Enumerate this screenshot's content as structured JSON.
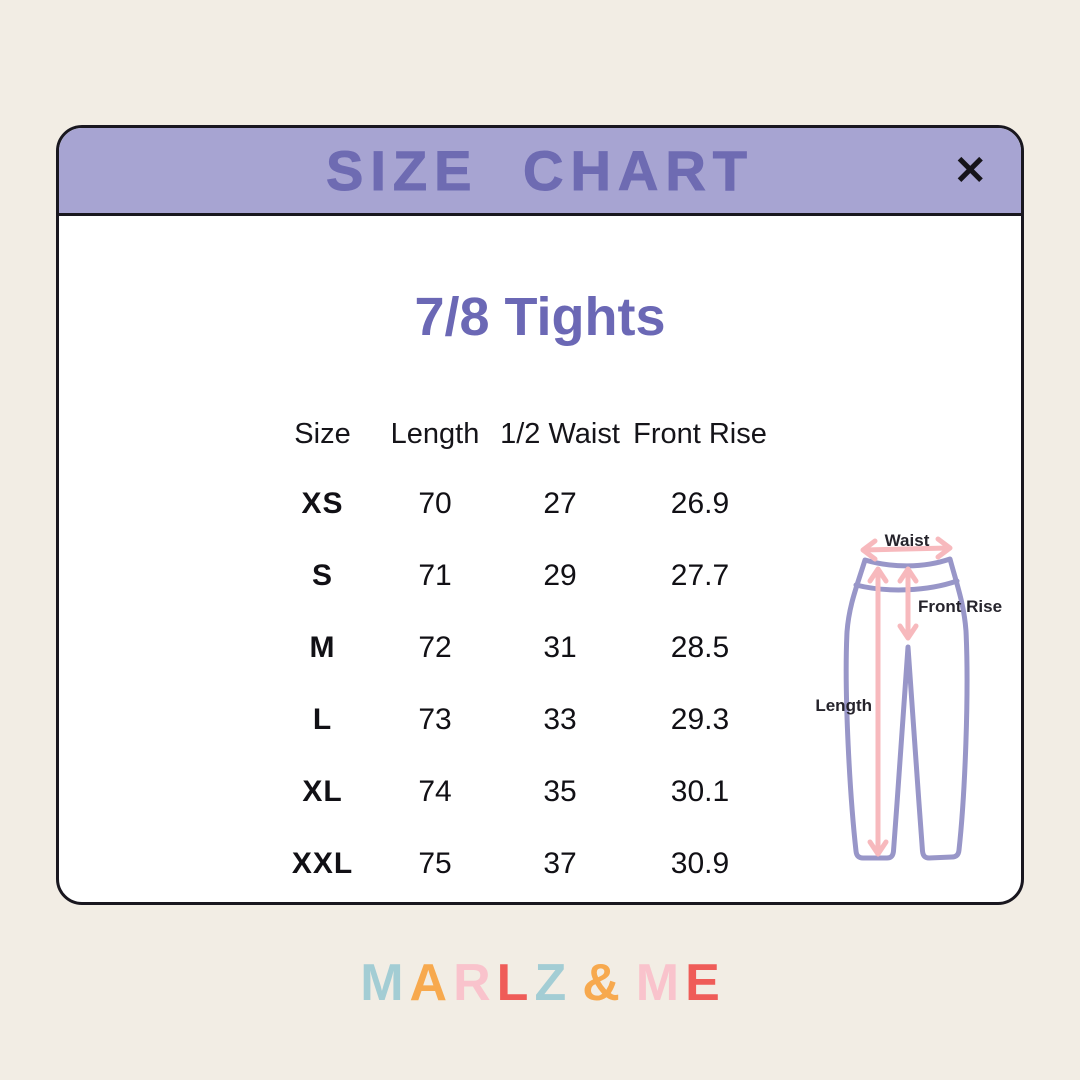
{
  "page": {
    "background_color": "#f2ede4"
  },
  "modal": {
    "border_color": "#19171f",
    "header": {
      "title": "SIZE CHART",
      "close_icon": "✕",
      "background_color": "#a7a4d2",
      "title_color": "#6e6bb2"
    },
    "product_title": "7/8 Tights",
    "title_color": "#6b68b5",
    "table": {
      "columns": [
        "Size",
        "Length",
        "1/2 Waist",
        "Front Rise"
      ],
      "rows": [
        [
          "XS",
          "70",
          "27",
          "26.9"
        ],
        [
          "S",
          "71",
          "29",
          "27.7"
        ],
        [
          "M",
          "72",
          "31",
          "28.5"
        ],
        [
          "L",
          "73",
          "33",
          "29.3"
        ],
        [
          "XL",
          "74",
          "35",
          "30.1"
        ],
        [
          "XXL",
          "75",
          "37",
          "30.9"
        ]
      ]
    },
    "diagram": {
      "waist_label": "Waist",
      "front_rise_label": "Front Rise",
      "length_label": "Length",
      "outline_color": "#9896c8",
      "arrow_color": "#f7b9bd"
    }
  },
  "brand": {
    "name": "MARLZ & ME",
    "letters": [
      {
        "ch": "M",
        "color": "#a3cdd4"
      },
      {
        "ch": "A",
        "color": "#f7a94e"
      },
      {
        "ch": "R",
        "color": "#f9c3cc"
      },
      {
        "ch": "L",
        "color": "#ef5c58"
      },
      {
        "ch": "Z",
        "color": "#a3cdd4"
      },
      {
        "ch": " ",
        "color": ""
      },
      {
        "ch": "&",
        "color": "#f7a94e"
      },
      {
        "ch": " ",
        "color": ""
      },
      {
        "ch": "M",
        "color": "#f9c3cc"
      },
      {
        "ch": "E",
        "color": "#ef5c58"
      }
    ]
  }
}
